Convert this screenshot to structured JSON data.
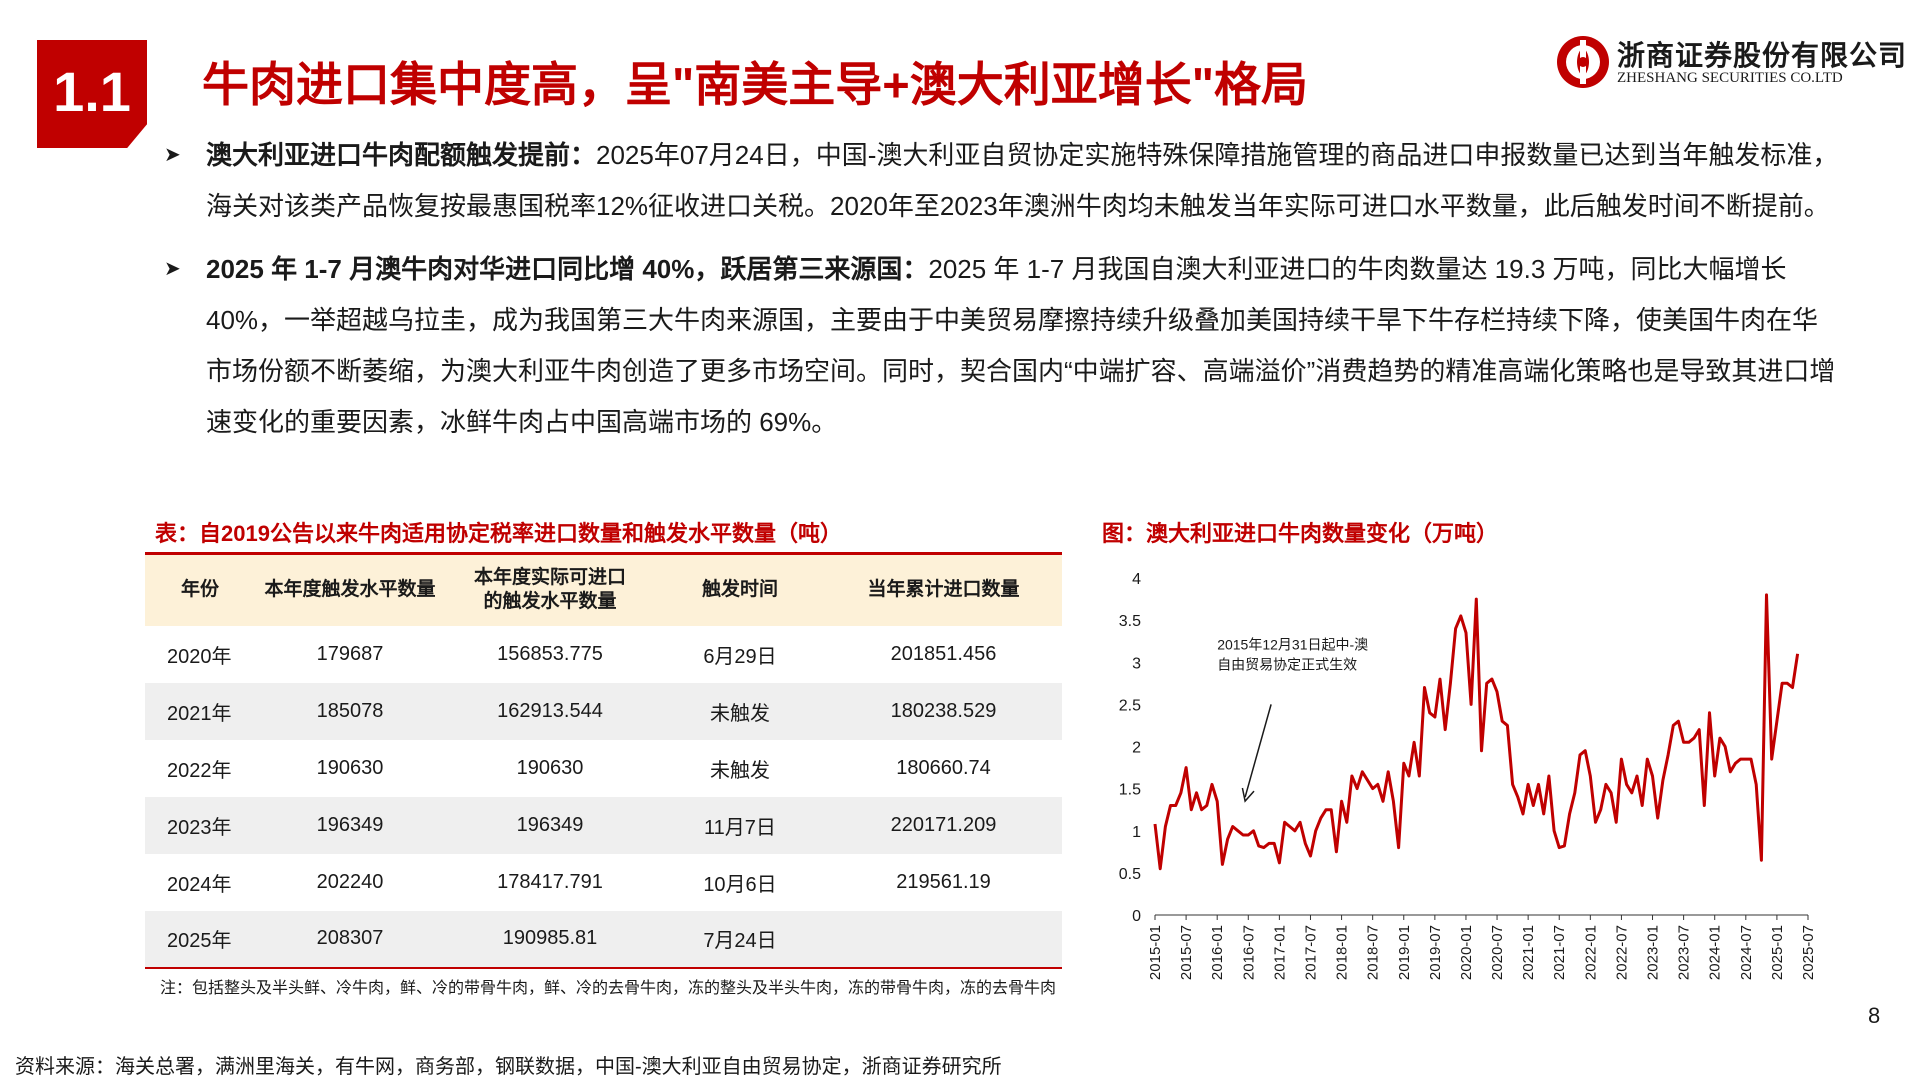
{
  "header": {
    "section_number": "1.1",
    "title": "牛肉进口集中度高，呈\"南美主导+澳大利亚增长\"格局",
    "logo_cn": "浙商证券股份有限公司",
    "logo_en": "ZHESHANG SECURITIES CO.LTD",
    "accent_color": "#c00000"
  },
  "bullets": [
    {
      "lead": "澳大利亚进口牛肉配额触发提前：",
      "text": "2025年07月24日，中国-澳大利亚自贸协定实施特殊保障措施管理的商品进口申报数量已达到当年触发标准，海关对该类产品恢复按最惠国税率12%征收进口关税。2020年至2023年澳洲牛肉均未触发当年实际可进口水平数量，此后触发时间不断提前。"
    },
    {
      "lead": "2025 年 1-7 月澳牛肉对华进口同比增 40%，跃居第三来源国：",
      "text": "2025 年 1-7 月我国自澳大利亚进口的牛肉数量达 19.3 万吨，同比大幅增长 40%，一举超越乌拉圭，成为我国第三大牛肉来源国，主要由于中美贸易摩擦持续升级叠加美国持续干旱下牛存栏持续下降，使美国牛肉在华市场份额不断萎缩，为澳大利亚牛肉创造了更多市场空间。同时，契合国内“中端扩容、高端溢价”消费趋势的精准高端化策略也是导致其进口增速变化的重要因素，冰鲜牛肉占中国高端市场的 69%。"
    }
  ],
  "table": {
    "title": "表：自2019公告以来牛肉适用协定税率进口数量和触发水平数量（吨）",
    "headers": [
      "年份",
      "本年度触发水平数量",
      "本年度实际可进口的触发水平数量",
      "触发时间",
      "当年累计进口数量"
    ],
    "rows": [
      [
        "2020年",
        "179687",
        "156853.775",
        "6月29日",
        "201851.456"
      ],
      [
        "2021年",
        "185078",
        "162913.544",
        "未触发",
        "180238.529"
      ],
      [
        "2022年",
        "190630",
        "190630",
        "未触发",
        "180660.74"
      ],
      [
        "2023年",
        "196349",
        "196349",
        "11月7日",
        "220171.209"
      ],
      [
        "2024年",
        "202240",
        "178417.791",
        "10月6日",
        "219561.19"
      ],
      [
        "2025年",
        "208307",
        "190985.81",
        "7月24日",
        ""
      ]
    ],
    "note": "注：包括整头及半头鲜、冷牛肉，鲜、冷的带骨牛肉，鲜、冷的去骨牛肉，冻的整头及半头牛肉，冻的带骨牛肉，冻的去骨牛肉",
    "source": "资料来源：海关总署，满洲里海关，有牛网，商务部，钢联数据，中国-澳大利亚自由贸易协定，浙商证券研究所"
  },
  "page_number": "8",
  "chart_data": {
    "type": "line",
    "title": "图：澳大利亚进口牛肉数量变化（万吨）",
    "xlabel": "",
    "ylabel": "",
    "ylim": [
      0,
      4
    ],
    "yticks": [
      "0",
      "0.5",
      "1",
      "1.5",
      "2",
      "2.5",
      "3",
      "3.5",
      "4"
    ],
    "x_ticks": [
      "2015-01",
      "2015-07",
      "2016-01",
      "2016-07",
      "2017-01",
      "2017-07",
      "2018-01",
      "2018-07",
      "2019-01",
      "2019-07",
      "2020-01",
      "2020-07",
      "2021-01",
      "2021-07",
      "2022-01",
      "2022-07",
      "2023-01",
      "2023-07",
      "2024-01",
      "2024-07",
      "2025-01",
      "2025-07"
    ],
    "x_start": "2015-01",
    "grid": false,
    "line_color": "#c00000",
    "annotation": {
      "text_lines": [
        "2015年12月31日起中-澳",
        "自由贸易协定正式生效"
      ],
      "target_x": "2016-06",
      "target_y": 1.28
    },
    "series": [
      {
        "name": "",
        "values": [
          1.08,
          0.55,
          1.05,
          1.3,
          1.3,
          1.45,
          1.75,
          1.25,
          1.45,
          1.25,
          1.3,
          1.55,
          1.35,
          0.6,
          0.9,
          1.05,
          1.0,
          0.95,
          0.95,
          1.0,
          0.82,
          0.8,
          0.85,
          0.85,
          0.62,
          1.1,
          1.05,
          1.0,
          1.1,
          0.85,
          0.7,
          1.0,
          1.15,
          1.25,
          1.25,
          0.75,
          1.35,
          1.1,
          1.65,
          1.5,
          1.7,
          1.6,
          1.5,
          1.55,
          1.35,
          1.7,
          1.35,
          0.8,
          1.8,
          1.65,
          2.05,
          1.65,
          2.7,
          2.4,
          2.35,
          2.8,
          2.2,
          2.75,
          3.4,
          3.55,
          3.35,
          2.5,
          3.75,
          1.95,
          2.75,
          2.8,
          2.65,
          2.3,
          2.25,
          1.55,
          1.4,
          1.2,
          1.55,
          1.3,
          1.55,
          1.2,
          1.65,
          1.0,
          0.8,
          0.82,
          1.2,
          1.45,
          1.9,
          1.95,
          1.65,
          1.1,
          1.25,
          1.55,
          1.45,
          1.1,
          1.85,
          1.55,
          1.45,
          1.65,
          1.3,
          1.85,
          1.65,
          1.15,
          1.6,
          1.9,
          2.25,
          2.3,
          2.05,
          2.05,
          2.1,
          2.2,
          1.3,
          2.4,
          1.65,
          2.1,
          2.0,
          1.7,
          1.8,
          1.85,
          1.85,
          1.85,
          1.55,
          0.65,
          3.8,
          1.85,
          2.3,
          2.75,
          2.75,
          2.7,
          3.1
        ]
      }
    ]
  }
}
